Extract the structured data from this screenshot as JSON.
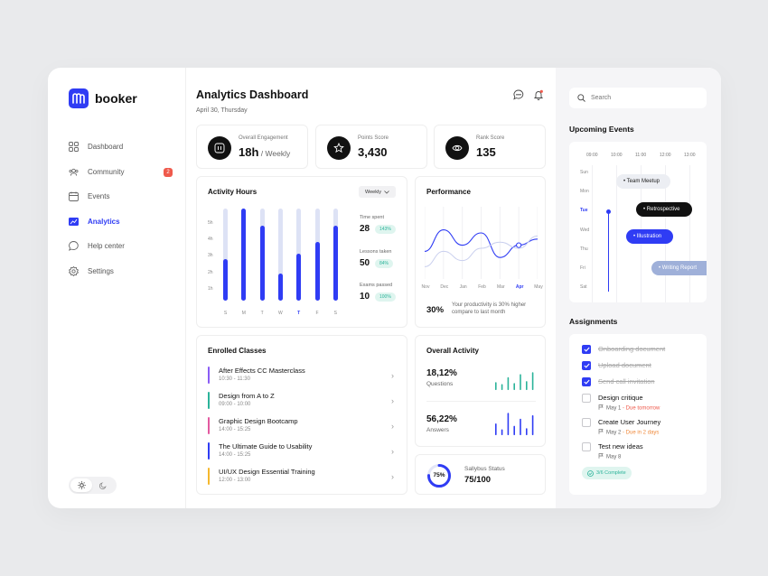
{
  "brand": {
    "name": "booker",
    "color": "#2f3cf4"
  },
  "nav": [
    {
      "label": "Dashboard",
      "icon": "grid-icon"
    },
    {
      "label": "Community",
      "icon": "users-icon",
      "badge": "2"
    },
    {
      "label": "Events",
      "icon": "calendar-icon"
    },
    {
      "label": "Analytics",
      "icon": "chart-icon",
      "active": true
    },
    {
      "label": "Help center",
      "icon": "chat-bubble-icon"
    },
    {
      "label": "Settings",
      "icon": "gear-icon"
    }
  ],
  "header": {
    "title": "Analytics Dashboard",
    "date": "April 30, Thursday"
  },
  "stats": [
    {
      "label": "Overall Engagement",
      "value": "18h",
      "sub": " / Weekly",
      "icon": "engagement-icon"
    },
    {
      "label": "Points Score",
      "value": "3,430",
      "icon": "star-icon"
    },
    {
      "label": "Rank Score",
      "value": "135",
      "icon": "rank-icon"
    }
  ],
  "activity": {
    "title": "Activity Hours",
    "period": "Weekly",
    "y_ticks": [
      "5h",
      "4h",
      "3h",
      "2h",
      "1h"
    ],
    "days": [
      "S",
      "M",
      "T",
      "W",
      "T",
      "F",
      "S"
    ],
    "highlight_day": 4,
    "hours": [
      2.5,
      5.5,
      4.5,
      1.6,
      2.8,
      3.5,
      4.5
    ],
    "max": 5,
    "side": [
      {
        "label": "Time spent",
        "value": "28",
        "pill": "143%"
      },
      {
        "label": "Lessons taken",
        "value": "50",
        "pill": "84%"
      },
      {
        "label": "Exams passed",
        "value": "10",
        "pill": "100%"
      }
    ]
  },
  "performance": {
    "title": "Performance",
    "months": [
      "Nov",
      "Dec",
      "Jan",
      "Feb",
      "Mar",
      "Apr",
      "May"
    ],
    "highlight_month": 5,
    "percent": "30%",
    "note": "Your productivity is 30% higher compare to last month",
    "chart_data": {
      "type": "line",
      "x": [
        "Nov",
        "Dec",
        "Jan",
        "Feb",
        "Mar",
        "Apr",
        "May"
      ],
      "series": [
        {
          "values": [
            0.45,
            0.8,
            0.55,
            0.75,
            0.35,
            0.55,
            0.65
          ],
          "color": "#2f3cf4"
        },
        {
          "values": [
            0.2,
            0.45,
            0.3,
            0.5,
            0.6,
            0.5,
            0.7
          ],
          "color": "#c9cfee"
        }
      ]
    }
  },
  "classes": {
    "title": "Enrolled Classes",
    "items": [
      {
        "name": "After Effects CC Masterclass",
        "time": "10:30 - 11:30",
        "color": "#8a5cf5"
      },
      {
        "name": "Design from A to Z",
        "time": "09:00 - 10:00",
        "color": "#2bb39a"
      },
      {
        "name": "Graphic Design Bootcamp",
        "time": "14:00 - 15:25",
        "color": "#e35aa0"
      },
      {
        "name": "The Ultimate Guide to Usability",
        "time": "14:00 - 15:25",
        "color": "#2f3cf4"
      },
      {
        "name": "UI/UX Design Essential Training",
        "time": "12:00 - 13:00",
        "color": "#f5b82e"
      }
    ]
  },
  "overall": {
    "title": "Overall Activity",
    "rows": [
      {
        "value": "18,12%",
        "label": "Questions",
        "color": "#2bb39a",
        "bars": [
          0.4,
          0.3,
          0.65,
          0.35,
          0.8,
          0.45,
          0.9
        ]
      },
      {
        "value": "56,22%",
        "label": "Answers",
        "color": "#2f3cf4",
        "bars": [
          0.5,
          0.25,
          0.95,
          0.4,
          0.7,
          0.3,
          0.85
        ]
      }
    ]
  },
  "syllabus": {
    "percent": 75,
    "percent_label": "75%",
    "label": "Sallybus Status",
    "value": "75/100"
  },
  "search": {
    "placeholder": "Search"
  },
  "events": {
    "title": "Upcoming Events",
    "hours": [
      "09:00",
      "10:00",
      "11:00",
      "12:00",
      "13:00"
    ],
    "days": [
      "Sun",
      "Mon",
      "Tue",
      "Wed",
      "Thu",
      "Fri",
      "Sat"
    ],
    "highlight_day": 2,
    "items": [
      {
        "label": "• Team Meetup",
        "style": "light"
      },
      {
        "label": "• Retrospective",
        "style": "dark"
      },
      {
        "label": "• Illustration",
        "style": "blue"
      },
      {
        "label": "• Writing Report",
        "style": "pale"
      }
    ]
  },
  "assignments": {
    "title": "Assignments",
    "items": [
      {
        "title": "Onboarding document",
        "done": true
      },
      {
        "title": "Upload document",
        "done": true
      },
      {
        "title": "Send call invitation",
        "done": true
      },
      {
        "title": "Design critique",
        "done": false,
        "date": "May 1",
        "due": " - Due tomorrow",
        "due_color": "#ef5a4c"
      },
      {
        "title": "Create User Journey",
        "done": false,
        "date": "May 2",
        "due": " - Due in 2 days",
        "due_color": "#f08a3c"
      },
      {
        "title": "Test new ideas",
        "done": false,
        "date": "May 8",
        "due": ""
      }
    ],
    "complete": "3/6 Complete"
  }
}
